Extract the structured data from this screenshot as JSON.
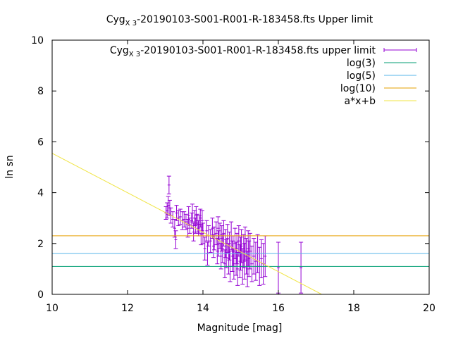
{
  "chart_data": {
    "type": "scatter",
    "title": {
      "prefix": "Cyg",
      "sub": "X 3",
      "suffix": "-20190103-S001-R001-R-183458.fts Upper limit"
    },
    "xlabel": "Magnitude [mag]",
    "ylabel": "ln sn",
    "xlim": [
      10,
      20
    ],
    "ylim": [
      0,
      10
    ],
    "x_ticks": [
      "10",
      "12",
      "14",
      "16",
      "18",
      "20"
    ],
    "y_ticks": [
      "0",
      "2",
      "4",
      "6",
      "8",
      "10"
    ],
    "grid": false,
    "legend_position": "top-right",
    "series": [
      {
        "name": "Cyg",
        "name_sub": "X 3",
        "name_suffix": "-20190103-S001-R001-R-183458.fts upper limit",
        "type": "errorbars",
        "color": "#9400d3",
        "points": [
          [
            13.02,
            3.2,
            0.25
          ],
          [
            13.05,
            3.3,
            0.3
          ],
          [
            13.08,
            3.5,
            0.35
          ],
          [
            13.1,
            4.3,
            0.35
          ],
          [
            13.12,
            3.4,
            0.3
          ],
          [
            13.15,
            3.1,
            0.3
          ],
          [
            13.2,
            2.95,
            0.3
          ],
          [
            13.25,
            2.6,
            0.35
          ],
          [
            13.28,
            2.15,
            0.35
          ],
          [
            13.3,
            3.2,
            0.3
          ],
          [
            13.35,
            3.0,
            0.3
          ],
          [
            13.4,
            3.05,
            0.3
          ],
          [
            13.45,
            2.9,
            0.35
          ],
          [
            13.5,
            2.95,
            0.3
          ],
          [
            13.55,
            2.85,
            0.3
          ],
          [
            13.6,
            2.6,
            0.35
          ],
          [
            13.62,
            3.1,
            0.35
          ],
          [
            13.65,
            2.7,
            0.3
          ],
          [
            13.7,
            2.9,
            0.3
          ],
          [
            13.72,
            3.2,
            0.35
          ],
          [
            13.75,
            2.45,
            0.35
          ],
          [
            13.78,
            3.0,
            0.3
          ],
          [
            13.8,
            2.7,
            0.3
          ],
          [
            13.82,
            3.1,
            0.35
          ],
          [
            13.85,
            2.8,
            0.35
          ],
          [
            13.88,
            2.6,
            0.3
          ],
          [
            13.9,
            2.75,
            0.35
          ],
          [
            13.93,
            3.0,
            0.35
          ],
          [
            13.95,
            2.35,
            0.4
          ],
          [
            13.98,
            2.9,
            0.4
          ],
          [
            14.0,
            2.4,
            0.4
          ],
          [
            14.05,
            1.8,
            0.45
          ],
          [
            14.1,
            2.5,
            0.4
          ],
          [
            14.12,
            1.6,
            0.45
          ],
          [
            14.15,
            2.3,
            0.4
          ],
          [
            14.2,
            2.1,
            0.45
          ],
          [
            14.25,
            2.6,
            0.4
          ],
          [
            14.28,
            1.9,
            0.45
          ],
          [
            14.3,
            2.2,
            0.45
          ],
          [
            14.35,
            2.4,
            0.45
          ],
          [
            14.38,
            1.7,
            0.5
          ],
          [
            14.4,
            2.6,
            0.45
          ],
          [
            14.42,
            2.0,
            0.5
          ],
          [
            14.45,
            2.3,
            0.5
          ],
          [
            14.48,
            1.5,
            0.5
          ],
          [
            14.5,
            2.2,
            0.5
          ],
          [
            14.52,
            1.8,
            0.55
          ],
          [
            14.55,
            2.4,
            0.5
          ],
          [
            14.58,
            1.2,
            0.55
          ],
          [
            14.6,
            2.0,
            0.55
          ],
          [
            14.62,
            1.6,
            0.55
          ],
          [
            14.65,
            2.2,
            0.55
          ],
          [
            14.68,
            1.4,
            0.6
          ],
          [
            14.7,
            1.9,
            0.55
          ],
          [
            14.72,
            1.1,
            0.6
          ],
          [
            14.75,
            2.3,
            0.55
          ],
          [
            14.78,
            1.5,
            0.6
          ],
          [
            14.8,
            1.7,
            0.6
          ],
          [
            14.82,
            1.2,
            0.6
          ],
          [
            14.85,
            2.0,
            0.6
          ],
          [
            14.88,
            1.4,
            0.65
          ],
          [
            14.9,
            1.8,
            0.6
          ],
          [
            14.92,
            1.0,
            0.65
          ],
          [
            14.95,
            2.1,
            0.6
          ],
          [
            14.98,
            1.3,
            0.65
          ],
          [
            15.0,
            1.6,
            0.65
          ],
          [
            15.02,
            1.9,
            0.65
          ],
          [
            15.05,
            1.1,
            0.7
          ],
          [
            15.08,
            1.7,
            0.65
          ],
          [
            15.1,
            1.3,
            0.7
          ],
          [
            15.12,
            2.0,
            0.65
          ],
          [
            15.15,
            1.5,
            0.7
          ],
          [
            15.18,
            1.0,
            0.7
          ],
          [
            15.2,
            1.8,
            0.7
          ],
          [
            15.22,
            1.4,
            0.7
          ],
          [
            15.25,
            1.7,
            0.7
          ],
          [
            15.3,
            1.2,
            0.7
          ],
          [
            15.35,
            1.5,
            0.7
          ],
          [
            15.4,
            1.3,
            0.75
          ],
          [
            15.45,
            1.6,
            0.75
          ],
          [
            15.5,
            1.1,
            0.75
          ],
          [
            15.55,
            1.4,
            0.75
          ],
          [
            15.6,
            1.2,
            0.8
          ],
          [
            15.65,
            1.5,
            0.8
          ],
          [
            16.0,
            1.05,
            1.0
          ],
          [
            16.6,
            1.05,
            1.0
          ]
        ]
      },
      {
        "name": "log(3)",
        "type": "hline",
        "y": 1.0986,
        "color": "#009e73"
      },
      {
        "name": "log(5)",
        "type": "hline",
        "y": 1.6094,
        "color": "#56b4e9"
      },
      {
        "name": "log(10)",
        "type": "hline",
        "y": 2.3026,
        "color": "#e69f00"
      },
      {
        "name": "a*x+b",
        "type": "line",
        "points": [
          [
            10,
            5.55
          ],
          [
            17.15,
            0
          ]
        ],
        "color": "#f0e442"
      }
    ]
  }
}
